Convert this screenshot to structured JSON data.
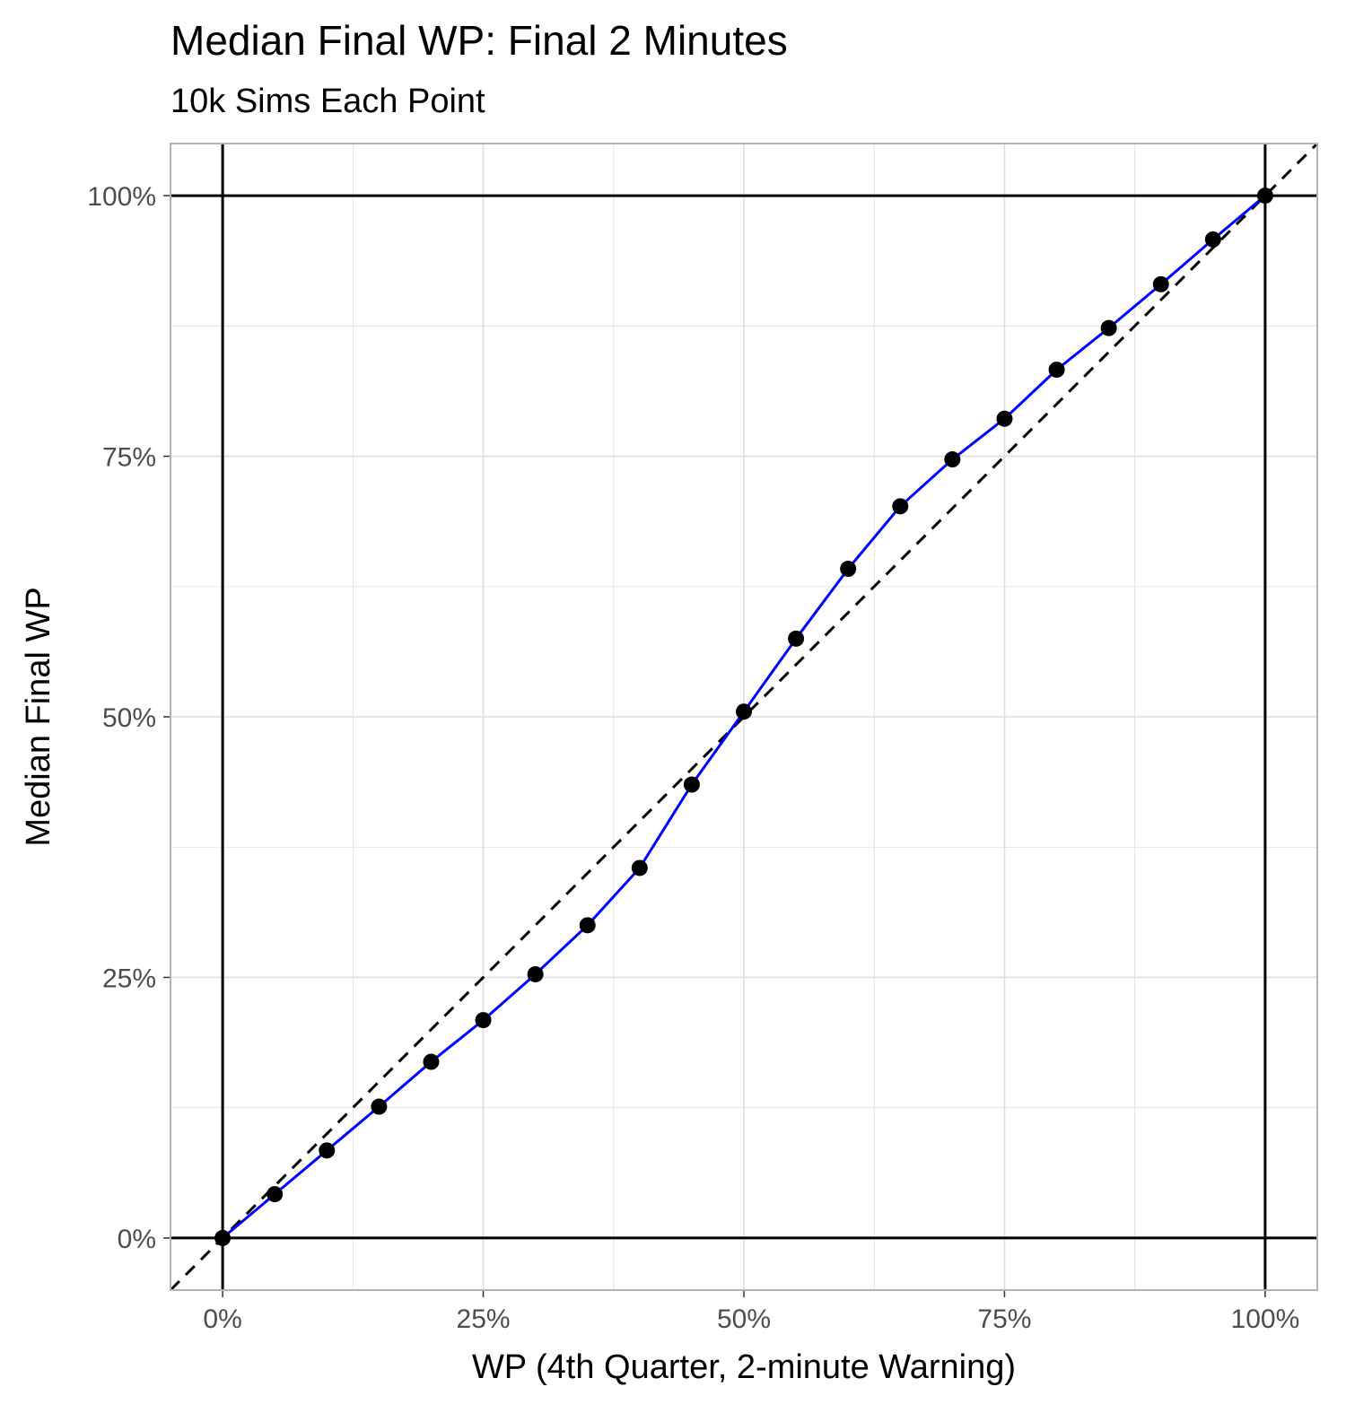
{
  "chart_data": {
    "type": "line",
    "title": "Median Final WP: Final 2 Minutes",
    "subtitle": "10k Sims Each Point",
    "xlabel": "WP (4th Quarter, 2-minute Warning)",
    "ylabel": "Median Final WP",
    "xlim": [
      -0.05,
      1.05
    ],
    "ylim": [
      -0.05,
      1.05
    ],
    "x_ticks": [
      0,
      0.25,
      0.5,
      0.75,
      1.0
    ],
    "x_tick_labels": [
      "0%",
      "25%",
      "50%",
      "75%",
      "100%"
    ],
    "y_ticks": [
      0,
      0.25,
      0.5,
      0.75,
      1.0
    ],
    "y_tick_labels": [
      "0%",
      "25%",
      "50%",
      "75%",
      "100%"
    ],
    "grid": true,
    "reference_lines": {
      "horizontal": [
        0,
        1
      ],
      "vertical": [
        0,
        1
      ],
      "diagonal_dashed": "y = x"
    },
    "series": [
      {
        "x": [
          0,
          0.05,
          0.1,
          0.15,
          0.2,
          0.25,
          0.3,
          0.35,
          0.4,
          0.45,
          0.5,
          0.55,
          0.6,
          0.65,
          0.7,
          0.75,
          0.8,
          0.85,
          0.9,
          0.95,
          1.0
        ],
        "values": [
          0.0,
          0.042,
          0.084,
          0.126,
          0.169,
          0.209,
          0.253,
          0.3,
          0.355,
          0.435,
          0.505,
          0.575,
          0.642,
          0.702,
          0.747,
          0.786,
          0.833,
          0.873,
          0.915,
          0.958,
          1.0
        ]
      }
    ],
    "colors": {
      "line": "#0000ff",
      "points": "#000000",
      "reference": "#000000",
      "grid": "#dedede",
      "panel_border": "#b3b3b3"
    }
  }
}
